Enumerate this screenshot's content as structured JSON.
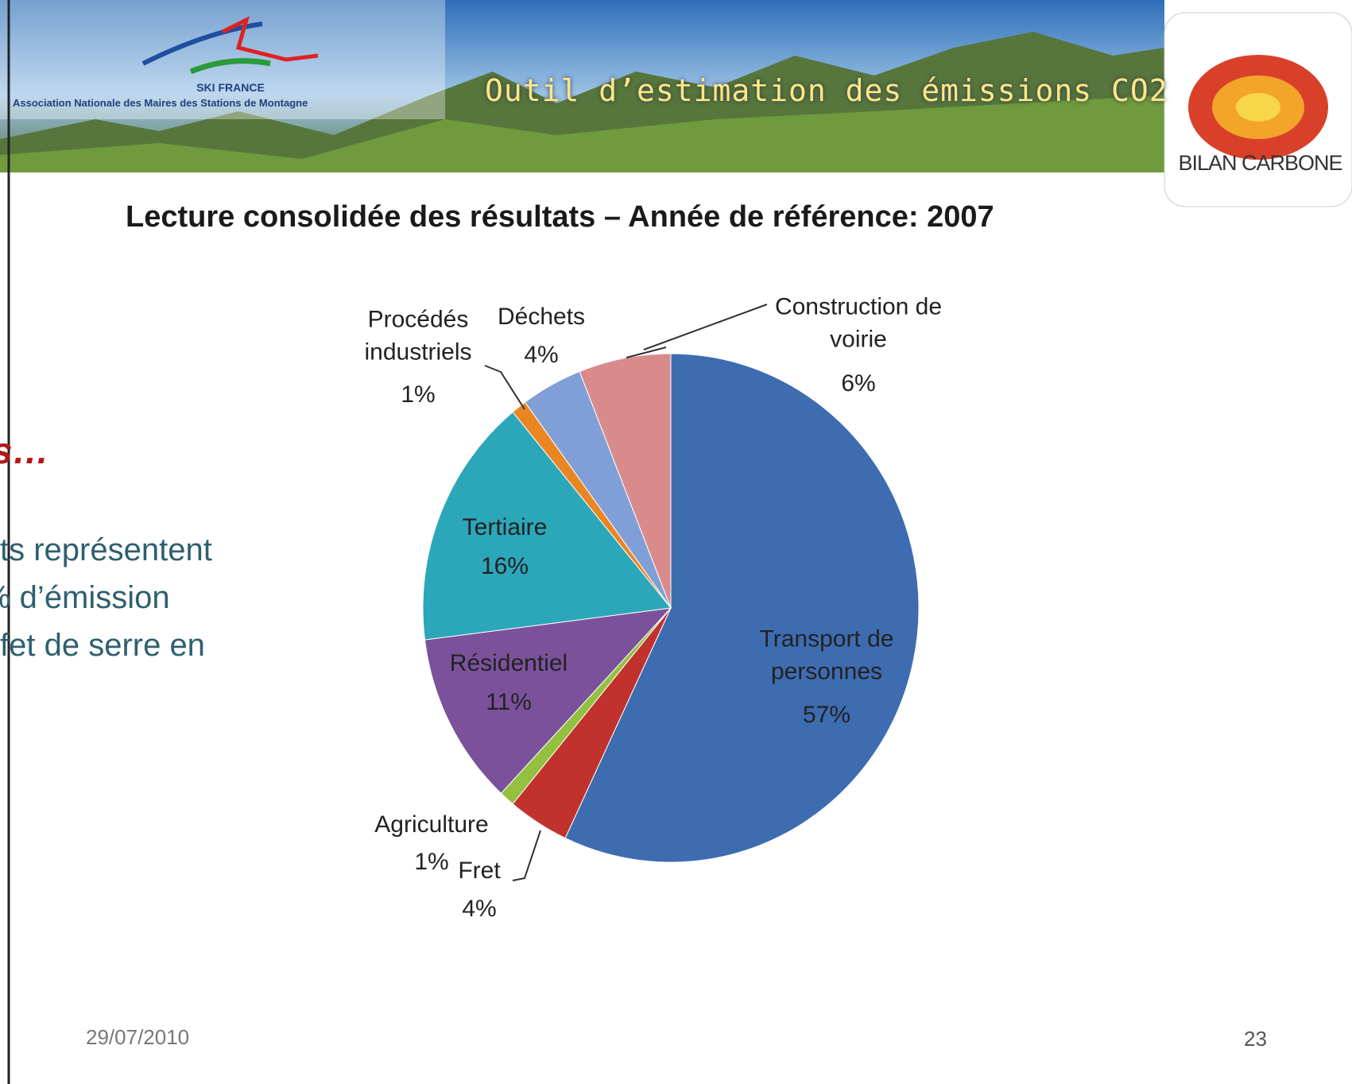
{
  "header": {
    "org_short": "SKI FRANCE",
    "org_full": "Association Nationale des Maires des Stations de Montagne",
    "banner_title": "Outil d’estimation des émissions CO2",
    "logo_text": "BILAN CARBONE"
  },
  "side_text": {
    "heading": "s…",
    "lines": [
      "ts représentent",
      "% d’émission",
      "fet de serre en"
    ]
  },
  "chart_data": {
    "type": "pie",
    "title": "Lecture consolidée des résultats – Année de référence: 2007",
    "categories": [
      "Transport de personnes",
      "Fret",
      "Agriculture",
      "Résidentiel",
      "Tertiaire",
      "Procédés industriels",
      "Déchets",
      "Construction de voirie"
    ],
    "values": [
      57,
      4,
      1,
      11,
      16,
      1,
      4,
      6
    ],
    "value_labels": [
      "57%",
      "4%",
      "1%",
      "11%",
      "16%",
      "1%",
      "4%",
      "6%"
    ],
    "colors": [
      "#3d6cb0",
      "#c1322c",
      "#94c040",
      "#7b519c",
      "#2ca7ba",
      "#ea8622",
      "#809fd6",
      "#d98b8b"
    ]
  },
  "footer": {
    "date": "29/07/2010",
    "page": "23"
  }
}
